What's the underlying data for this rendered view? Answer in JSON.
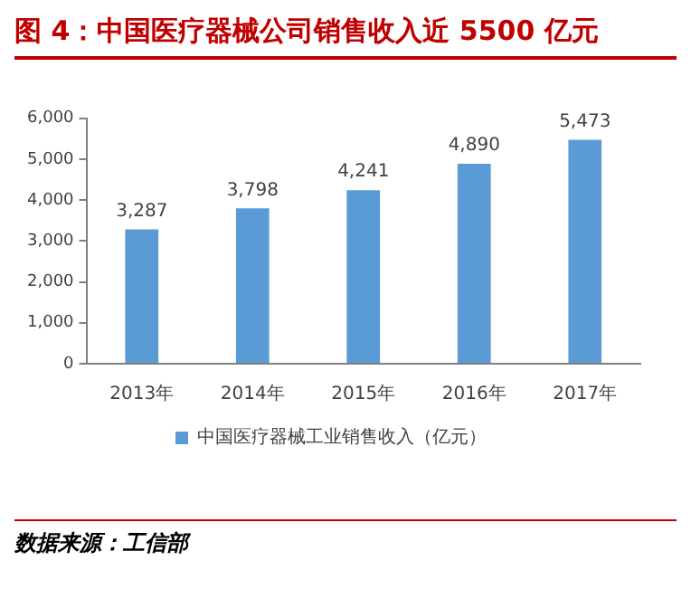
{
  "chart_data": {
    "type": "bar",
    "title": "图 4：中国医疗器械公司销售收入近 5500 亿元",
    "categories": [
      "2013年",
      "2014年",
      "2015年",
      "2016年",
      "2017年"
    ],
    "series": [
      {
        "name": "中国医疗器械工业销售收入（亿元）",
        "color": "#5b9bd5",
        "values": [
          3287,
          3798,
          4241,
          4890,
          5473
        ],
        "value_labels": [
          "3,287",
          "3,798",
          "4,241",
          "4,890",
          "5,473"
        ]
      }
    ],
    "ylim": [
      0,
      6000
    ],
    "yticks": [
      {
        "value": 0,
        "label": "0"
      },
      {
        "value": 1000,
        "label": "1,000"
      },
      {
        "value": 2000,
        "label": "2,000"
      },
      {
        "value": 3000,
        "label": "3,000"
      },
      {
        "value": 4000,
        "label": "4,000"
      },
      {
        "value": 5000,
        "label": "5,000"
      },
      {
        "value": 6000,
        "label": "6,000"
      }
    ],
    "grid": false,
    "legend": "bottom",
    "annotations": [
      "数据来源：工信部"
    ]
  }
}
